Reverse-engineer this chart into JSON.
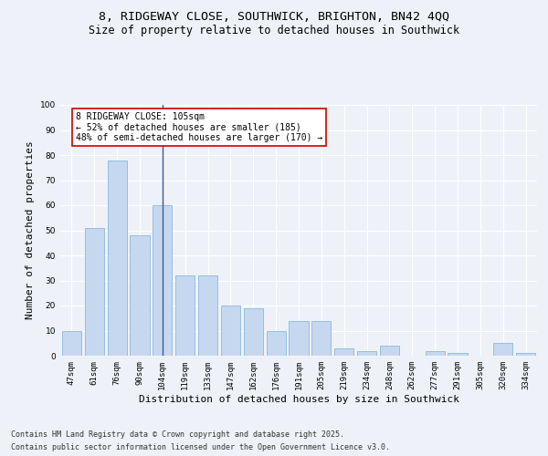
{
  "title_line1": "8, RIDGEWAY CLOSE, SOUTHWICK, BRIGHTON, BN42 4QQ",
  "title_line2": "Size of property relative to detached houses in Southwick",
  "xlabel": "Distribution of detached houses by size in Southwick",
  "ylabel": "Number of detached properties",
  "categories": [
    "47sqm",
    "61sqm",
    "76sqm",
    "90sqm",
    "104sqm",
    "119sqm",
    "133sqm",
    "147sqm",
    "162sqm",
    "176sqm",
    "191sqm",
    "205sqm",
    "219sqm",
    "234sqm",
    "248sqm",
    "262sqm",
    "277sqm",
    "291sqm",
    "305sqm",
    "320sqm",
    "334sqm"
  ],
  "values": [
    10,
    51,
    78,
    48,
    60,
    32,
    32,
    20,
    19,
    10,
    14,
    14,
    3,
    2,
    4,
    0,
    2,
    1,
    0,
    5,
    1
  ],
  "bar_color": "#c5d8f0",
  "bar_edge_color": "#7bafd4",
  "vline_index": 4,
  "vline_color": "#3a5a9c",
  "annotation_line1": "8 RIDGEWAY CLOSE: 105sqm",
  "annotation_line2": "← 52% of detached houses are smaller (185)",
  "annotation_line3": "48% of semi-detached houses are larger (170) →",
  "annotation_box_facecolor": "#ffffff",
  "annotation_box_edgecolor": "#cc0000",
  "ylim": [
    0,
    100
  ],
  "yticks": [
    0,
    10,
    20,
    30,
    40,
    50,
    60,
    70,
    80,
    90,
    100
  ],
  "background_color": "#eef2f8",
  "plot_bg_color": "#eef2f8",
  "grid_color": "#ffffff",
  "footer_line1": "Contains HM Land Registry data © Crown copyright and database right 2025.",
  "footer_line2": "Contains public sector information licensed under the Open Government Licence v3.0.",
  "title_fontsize": 9.5,
  "subtitle_fontsize": 8.5,
  "axis_label_fontsize": 8,
  "tick_fontsize": 6.5,
  "annotation_fontsize": 7,
  "footer_fontsize": 6
}
